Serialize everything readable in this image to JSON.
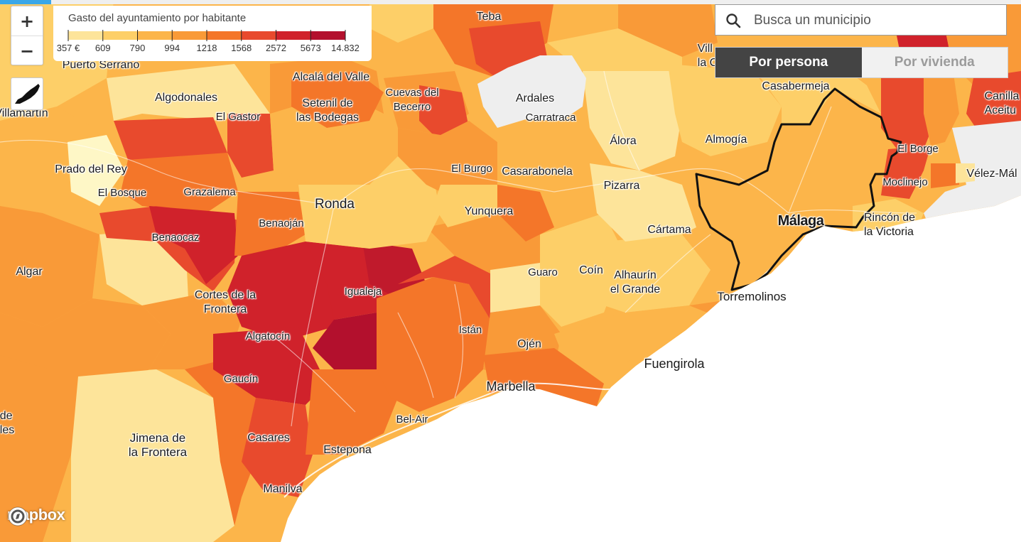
{
  "legend": {
    "title": "Gasto del ayuntamiento por habitante",
    "ticks": [
      "357 €",
      "609",
      "790",
      "994",
      "1218",
      "1568",
      "2572",
      "5673",
      "14.832"
    ],
    "colors": [
      "#fef7c6",
      "#fde49a",
      "#fdcf68",
      "#fcb54a",
      "#f99a38",
      "#f47629",
      "#e84a2d",
      "#d0222b",
      "#b3102d"
    ]
  },
  "controls": {
    "zoom_in": "+",
    "zoom_out": "−"
  },
  "search": {
    "placeholder": "Busca un municipio"
  },
  "toggle": {
    "per_person": "Por persona",
    "per_dwelling": "Por vivienda",
    "active": "per_person"
  },
  "attribution": "mapbox",
  "labels": {
    "teba": "Teba",
    "puerto_serrano": "Puerto Serrano",
    "villamartin": "Villamartín",
    "algodonales": "Algodonales",
    "el_gastor": "El Gastor",
    "alcala_del_valle": "Alcalá del Valle",
    "setenil": "Setenil de\nlas Bodegas",
    "cuevas_del_becerro": "Cuevas del\nBecerro",
    "ardales": "Ardales",
    "carratraca": "Carratraca",
    "alora": "Álora",
    "almogia": "Almogía",
    "casabermeja": "Casabermeja",
    "villanueva_partial": "Vill\nla C",
    "canillas_partial": "Canilla\nAceitu",
    "el_borge": "El Borge",
    "moclinejo": "Moclinejo",
    "velez_malaga_partial": "Vélez-Mál",
    "prado_del_rey": "Prado del Rey",
    "el_bosque": "El Bosque",
    "grazalema": "Grazalema",
    "el_burgo": "El Burgo",
    "casarabonela": "Casarabonela",
    "pizarra": "Pizarra",
    "ronda": "Ronda",
    "yunquera": "Yunquera",
    "malaga": "Málaga",
    "rincon_de_la_victoria": "Rincón de\nla Victoria",
    "benaojan": "Benaoján",
    "benaocaz": "Benaocaz",
    "cartama": "Cártama",
    "algar": "Algar",
    "guaro": "Guaro",
    "coin": "Coín",
    "alhaurin_el_grande": "Alhaurín\nel Grande",
    "cortes_de_la_frontera": "Cortes de la\nFrontera",
    "igualeja": "Igualeja",
    "torremolinos": "Torremolinos",
    "algatocin": "Algatocín",
    "istan": "Istán",
    "ojen": "Ojén",
    "fuengirola": "Fuengirola",
    "gaucin": "Gaucín",
    "marbella": "Marbella",
    "bel_air": "Bel-Air",
    "jimena": "Jimena de\nla Frontera",
    "casares": "Casares",
    "estepona": "Estepona",
    "manilva": "Manilva",
    "edge_left_partial": "de\nles"
  },
  "map_colors": {
    "sea": "#ffffff",
    "no_data": "#eeeeee",
    "highlight_outline": "#111111"
  }
}
